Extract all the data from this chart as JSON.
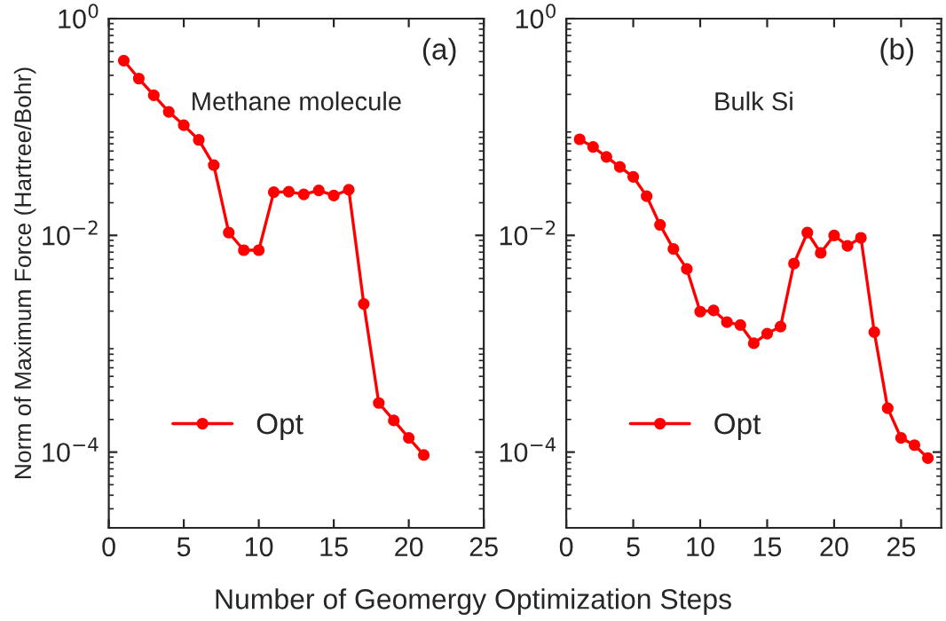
{
  "chart_data": [
    {
      "type": "line",
      "xlabel": "Number of Geomergy Optimization Steps",
      "ylabel": "Norm of Maximum Force (Hartree/Bohr)",
      "annotations": [
        "(a)",
        "Methane molecule"
      ],
      "log": "y",
      "xlim": [
        0,
        25
      ],
      "xticks": [
        0,
        5,
        10,
        15,
        20,
        25
      ],
      "ylim": [
        2e-05,
        1
      ],
      "yticks": [
        {
          "value": 1,
          "label": "10$^{0}$"
        },
        {
          "value": 0.01,
          "label": "10$^{−2}$"
        },
        {
          "value": 0.0001,
          "label": "10$^{−4}$"
        }
      ],
      "grid": false,
      "legend": "bottom left",
      "marker": "circle",
      "line_style": "solid",
      "series": [
        {
          "name": "Opt",
          "color": "#ff0000",
          "x": [
            1,
            2,
            3,
            4,
            5,
            6,
            7,
            8,
            9,
            10,
            11,
            12,
            13,
            14,
            15,
            16,
            17,
            18,
            19,
            20,
            21
          ],
          "values": [
            0.41,
            0.28,
            0.196,
            0.138,
            0.104,
            0.076,
            0.0445,
            0.0106,
            0.0073,
            0.0073,
            0.025,
            0.0253,
            0.0239,
            0.026,
            0.0233,
            0.0264,
            0.00233,
            0.000284,
            0.000196,
            0.000135,
            9.4e-05
          ]
        }
      ]
    },
    {
      "type": "line",
      "annotations": [
        "(b)",
        "Bulk Si"
      ],
      "log": "y",
      "xlim": [
        0,
        28
      ],
      "xticks": [
        0,
        5,
        10,
        15,
        20,
        25
      ],
      "ylim": [
        2e-05,
        1
      ],
      "yticks": [
        {
          "value": 1,
          "label": "10$^{0}$"
        },
        {
          "value": 0.01,
          "label": "10$^{−2}$"
        },
        {
          "value": 0.0001,
          "label": "10$^{−4}$"
        }
      ],
      "grid": false,
      "legend": "bottom left",
      "marker": "circle",
      "line_style": "solid",
      "series": [
        {
          "name": "Opt",
          "color": "#ff0000",
          "x": [
            1,
            2,
            3,
            4,
            5,
            6,
            7,
            8,
            9,
            10,
            11,
            12,
            13,
            14,
            15,
            16,
            17,
            18,
            19,
            20,
            21,
            22,
            23,
            24,
            25,
            26,
            27
          ],
          "values": [
            0.077,
            0.0655,
            0.053,
            0.0429,
            0.0347,
            0.023,
            0.0125,
            0.0075,
            0.0049,
            0.00198,
            0.00203,
            0.00158,
            0.00149,
            0.00101,
            0.00124,
            0.00144,
            0.0055,
            0.0106,
            0.0069,
            0.01,
            0.008,
            0.0095,
            0.00128,
            0.000254,
            0.000135,
            0.000116,
            8.8e-05
          ]
        }
      ]
    }
  ]
}
